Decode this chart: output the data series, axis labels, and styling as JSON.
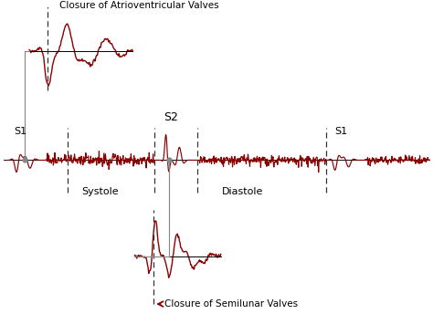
{
  "background_color": "#ffffff",
  "signal_color": "#8B0000",
  "annotation_color": "#888888",
  "dashed_line_color": "#333333",
  "label_S1_left": "S1",
  "label_S2": "S2",
  "label_S1_right": "S1",
  "label_systole": "Systole",
  "label_diastole": "Diastole",
  "label_top": "Closure of Atrioventricular Valves",
  "label_bottom": "Closure of Semilunar Valves",
  "fig_width": 4.74,
  "fig_height": 3.44,
  "dpi": 100,
  "xlim": [
    0,
    10
  ],
  "ylim": [
    -3.5,
    3.5
  ],
  "main_y": 0.0,
  "top_inset_y": 2.5,
  "bot_inset_y": -2.2,
  "s1_left_x": 0.7,
  "s2_x": 3.8,
  "s1_right_x": 7.8,
  "dash1_x": 1.55,
  "dash2_x": 3.55,
  "dash3_x": 4.55,
  "dash4_x": 7.55
}
